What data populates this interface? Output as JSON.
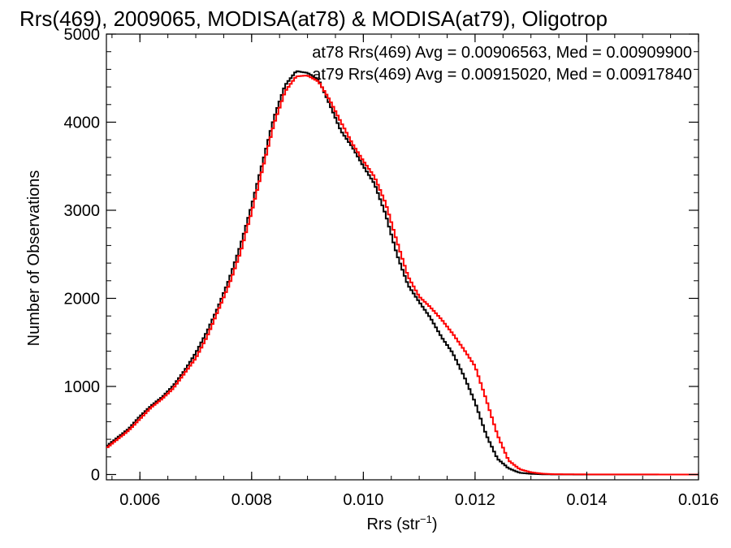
{
  "chart_data": {
    "type": "line",
    "title": "Rrs(469), 2009065, MODISA(at78) & MODISA(at79), Oligotrop",
    "xlabel": "Rrs (str",
    "xlabel_sup": "−1",
    "xlabel_close": ")",
    "ylabel": "Number of Observations",
    "xlim": [
      0.0054,
      0.016
    ],
    "ylim": [
      -60,
      5000
    ],
    "x_ticks": [
      "0.006",
      "0.008",
      "0.010",
      "0.012",
      "0.014",
      "0.016"
    ],
    "y_ticks": [
      "0",
      "1000",
      "2000",
      "3000",
      "4000",
      "5000"
    ],
    "grid": false,
    "legend_placement": "top-right",
    "annotations": [
      {
        "text": "at78 Rrs(469) Avg = 0.00906563, Med = 0.00909900",
        "color": "#000000"
      },
      {
        "text": "at79 Rrs(469) Avg = 0.00915020, Med = 0.00917840",
        "color": "#ff0000"
      }
    ],
    "series": [
      {
        "color": "#000000",
        "points": [
          [
            0.0054,
            320
          ],
          [
            0.0056,
            420
          ],
          [
            0.0058,
            520
          ],
          [
            0.006,
            660
          ],
          [
            0.0062,
            780
          ],
          [
            0.0064,
            880
          ],
          [
            0.0066,
            1010
          ],
          [
            0.0068,
            1180
          ],
          [
            0.007,
            1380
          ],
          [
            0.0072,
            1620
          ],
          [
            0.0074,
            1900
          ],
          [
            0.0076,
            2220
          ],
          [
            0.0078,
            2600
          ],
          [
            0.008,
            3050
          ],
          [
            0.0082,
            3550
          ],
          [
            0.0084,
            4050
          ],
          [
            0.0086,
            4420
          ],
          [
            0.0088,
            4580
          ],
          [
            0.009,
            4560
          ],
          [
            0.0092,
            4480
          ],
          [
            0.0094,
            4200
          ],
          [
            0.0096,
            3900
          ],
          [
            0.0098,
            3720
          ],
          [
            0.01,
            3500
          ],
          [
            0.0102,
            3300
          ],
          [
            0.0104,
            2950
          ],
          [
            0.0106,
            2500
          ],
          [
            0.0108,
            2150
          ],
          [
            0.011,
            1960
          ],
          [
            0.0112,
            1780
          ],
          [
            0.0114,
            1560
          ],
          [
            0.0116,
            1380
          ],
          [
            0.0118,
            1120
          ],
          [
            0.012,
            820
          ],
          [
            0.0122,
            450
          ],
          [
            0.0124,
            180
          ],
          [
            0.0126,
            70
          ],
          [
            0.0128,
            20
          ],
          [
            0.013,
            8
          ],
          [
            0.0132,
            3
          ],
          [
            0.0134,
            1
          ],
          [
            0.014,
            0
          ],
          [
            0.016,
            0
          ]
        ]
      },
      {
        "color": "#ff0000",
        "points": [
          [
            0.0054,
            300
          ],
          [
            0.0056,
            400
          ],
          [
            0.0058,
            500
          ],
          [
            0.006,
            630
          ],
          [
            0.0062,
            760
          ],
          [
            0.0064,
            860
          ],
          [
            0.0066,
            980
          ],
          [
            0.0068,
            1150
          ],
          [
            0.007,
            1320
          ],
          [
            0.0072,
            1560
          ],
          [
            0.0074,
            1860
          ],
          [
            0.0076,
            2160
          ],
          [
            0.0078,
            2520
          ],
          [
            0.008,
            2980
          ],
          [
            0.0082,
            3480
          ],
          [
            0.0084,
            3980
          ],
          [
            0.0086,
            4350
          ],
          [
            0.0088,
            4520
          ],
          [
            0.009,
            4530
          ],
          [
            0.0092,
            4460
          ],
          [
            0.0094,
            4250
          ],
          [
            0.0096,
            4000
          ],
          [
            0.0098,
            3760
          ],
          [
            0.01,
            3560
          ],
          [
            0.0102,
            3380
          ],
          [
            0.0104,
            3080
          ],
          [
            0.0106,
            2650
          ],
          [
            0.0108,
            2250
          ],
          [
            0.011,
            2020
          ],
          [
            0.0112,
            1900
          ],
          [
            0.0114,
            1760
          ],
          [
            0.0116,
            1600
          ],
          [
            0.0118,
            1420
          ],
          [
            0.012,
            1230
          ],
          [
            0.0122,
            850
          ],
          [
            0.0124,
            450
          ],
          [
            0.0126,
            160
          ],
          [
            0.0128,
            60
          ],
          [
            0.013,
            25
          ],
          [
            0.0132,
            10
          ],
          [
            0.0134,
            4
          ],
          [
            0.014,
            1
          ],
          [
            0.016,
            0
          ]
        ]
      }
    ]
  }
}
